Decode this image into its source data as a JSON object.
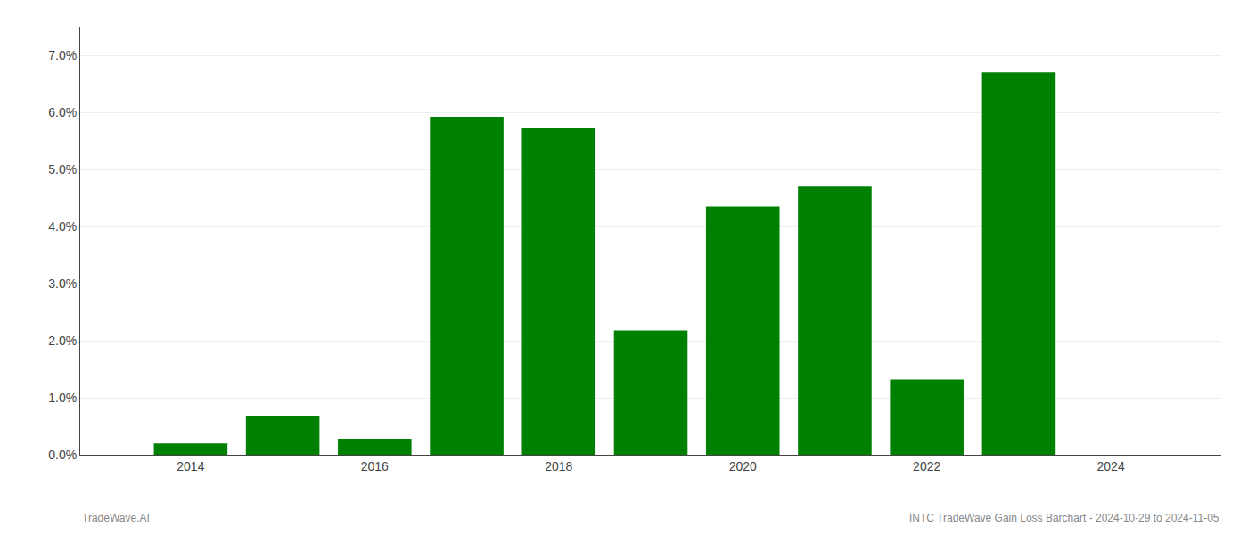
{
  "chart_data": {
    "type": "bar",
    "x": [
      2014,
      2015,
      2016,
      2017,
      2018,
      2019,
      2020,
      2021,
      2022,
      2023
    ],
    "values": [
      0.002,
      0.0068,
      0.0028,
      0.0592,
      0.0572,
      0.0218,
      0.0435,
      0.047,
      0.0132,
      0.067
    ],
    "color": "#008000",
    "xlim": [
      2012.8,
      2025.2
    ],
    "xticks": [
      2014,
      2016,
      2018,
      2020,
      2022,
      2024
    ],
    "ylim": [
      0,
      0.075
    ],
    "yticks": [
      {
        "value": 0.0,
        "label": "0.0%"
      },
      {
        "value": 0.01,
        "label": "1.0%"
      },
      {
        "value": 0.02,
        "label": "2.0%"
      },
      {
        "value": 0.03,
        "label": "3.0%"
      },
      {
        "value": 0.04,
        "label": "4.0%"
      },
      {
        "value": 0.05,
        "label": "5.0%"
      },
      {
        "value": 0.06,
        "label": "6.0%"
      },
      {
        "value": 0.07,
        "label": "7.0%"
      }
    ],
    "grid": "y",
    "annotations": [
      "TradeWave.AI",
      "INTC TradeWave Gain Loss Barchart - 2024-10-29 to 2024-11-05"
    ]
  }
}
